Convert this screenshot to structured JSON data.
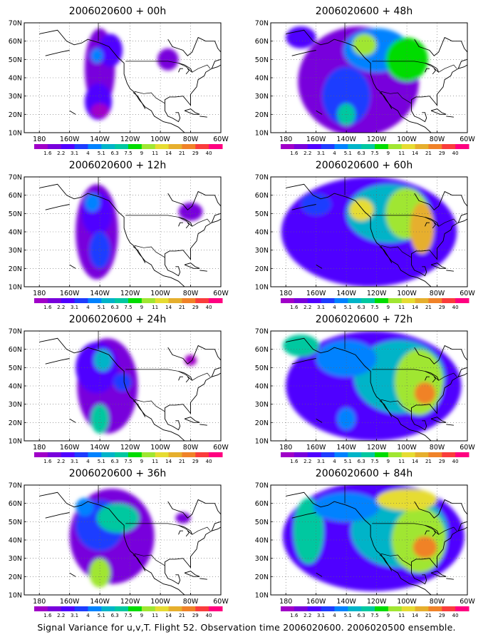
{
  "panels": [
    {
      "title": "2006020600 + 00h"
    },
    {
      "title": "2006020600 + 48h"
    },
    {
      "title": "2006020600 + 12h"
    },
    {
      "title": "2006020600 + 60h"
    },
    {
      "title": "2006020600 + 24h"
    },
    {
      "title": "2006020600 + 72h"
    },
    {
      "title": "2006020600 + 36h"
    },
    {
      "title": "2006020600 + 84h"
    }
  ],
  "map": {
    "lat_labels": [
      "70N",
      "60N",
      "50N",
      "40N",
      "30N",
      "20N",
      "10N"
    ],
    "lon_labels": [
      "180",
      "160W",
      "140W",
      "120W",
      "100W",
      "80W",
      "60W"
    ],
    "lon_range": [
      -190,
      -60
    ],
    "lat_range": [
      10,
      70
    ]
  },
  "colorbar": {
    "labels": [
      "1.6",
      "2.2",
      "3.1",
      "4",
      "5.1",
      "6.3",
      "7.5",
      "9",
      "11",
      "14",
      "21",
      "29",
      "40"
    ],
    "colors": [
      "#a000c8",
      "#7800dc",
      "#5000ff",
      "#1e3cff",
      "#0082ff",
      "#00b4c8",
      "#00c8a0",
      "#00dc00",
      "#a0e632",
      "#e6dc32",
      "#e6af2d",
      "#f08228",
      "#fa3c3c",
      "#ff0080"
    ]
  },
  "caption": "Signal Variance for u,v,T. Flight 52. Observation time 2006020600. 2006020500 ensemble."
}
